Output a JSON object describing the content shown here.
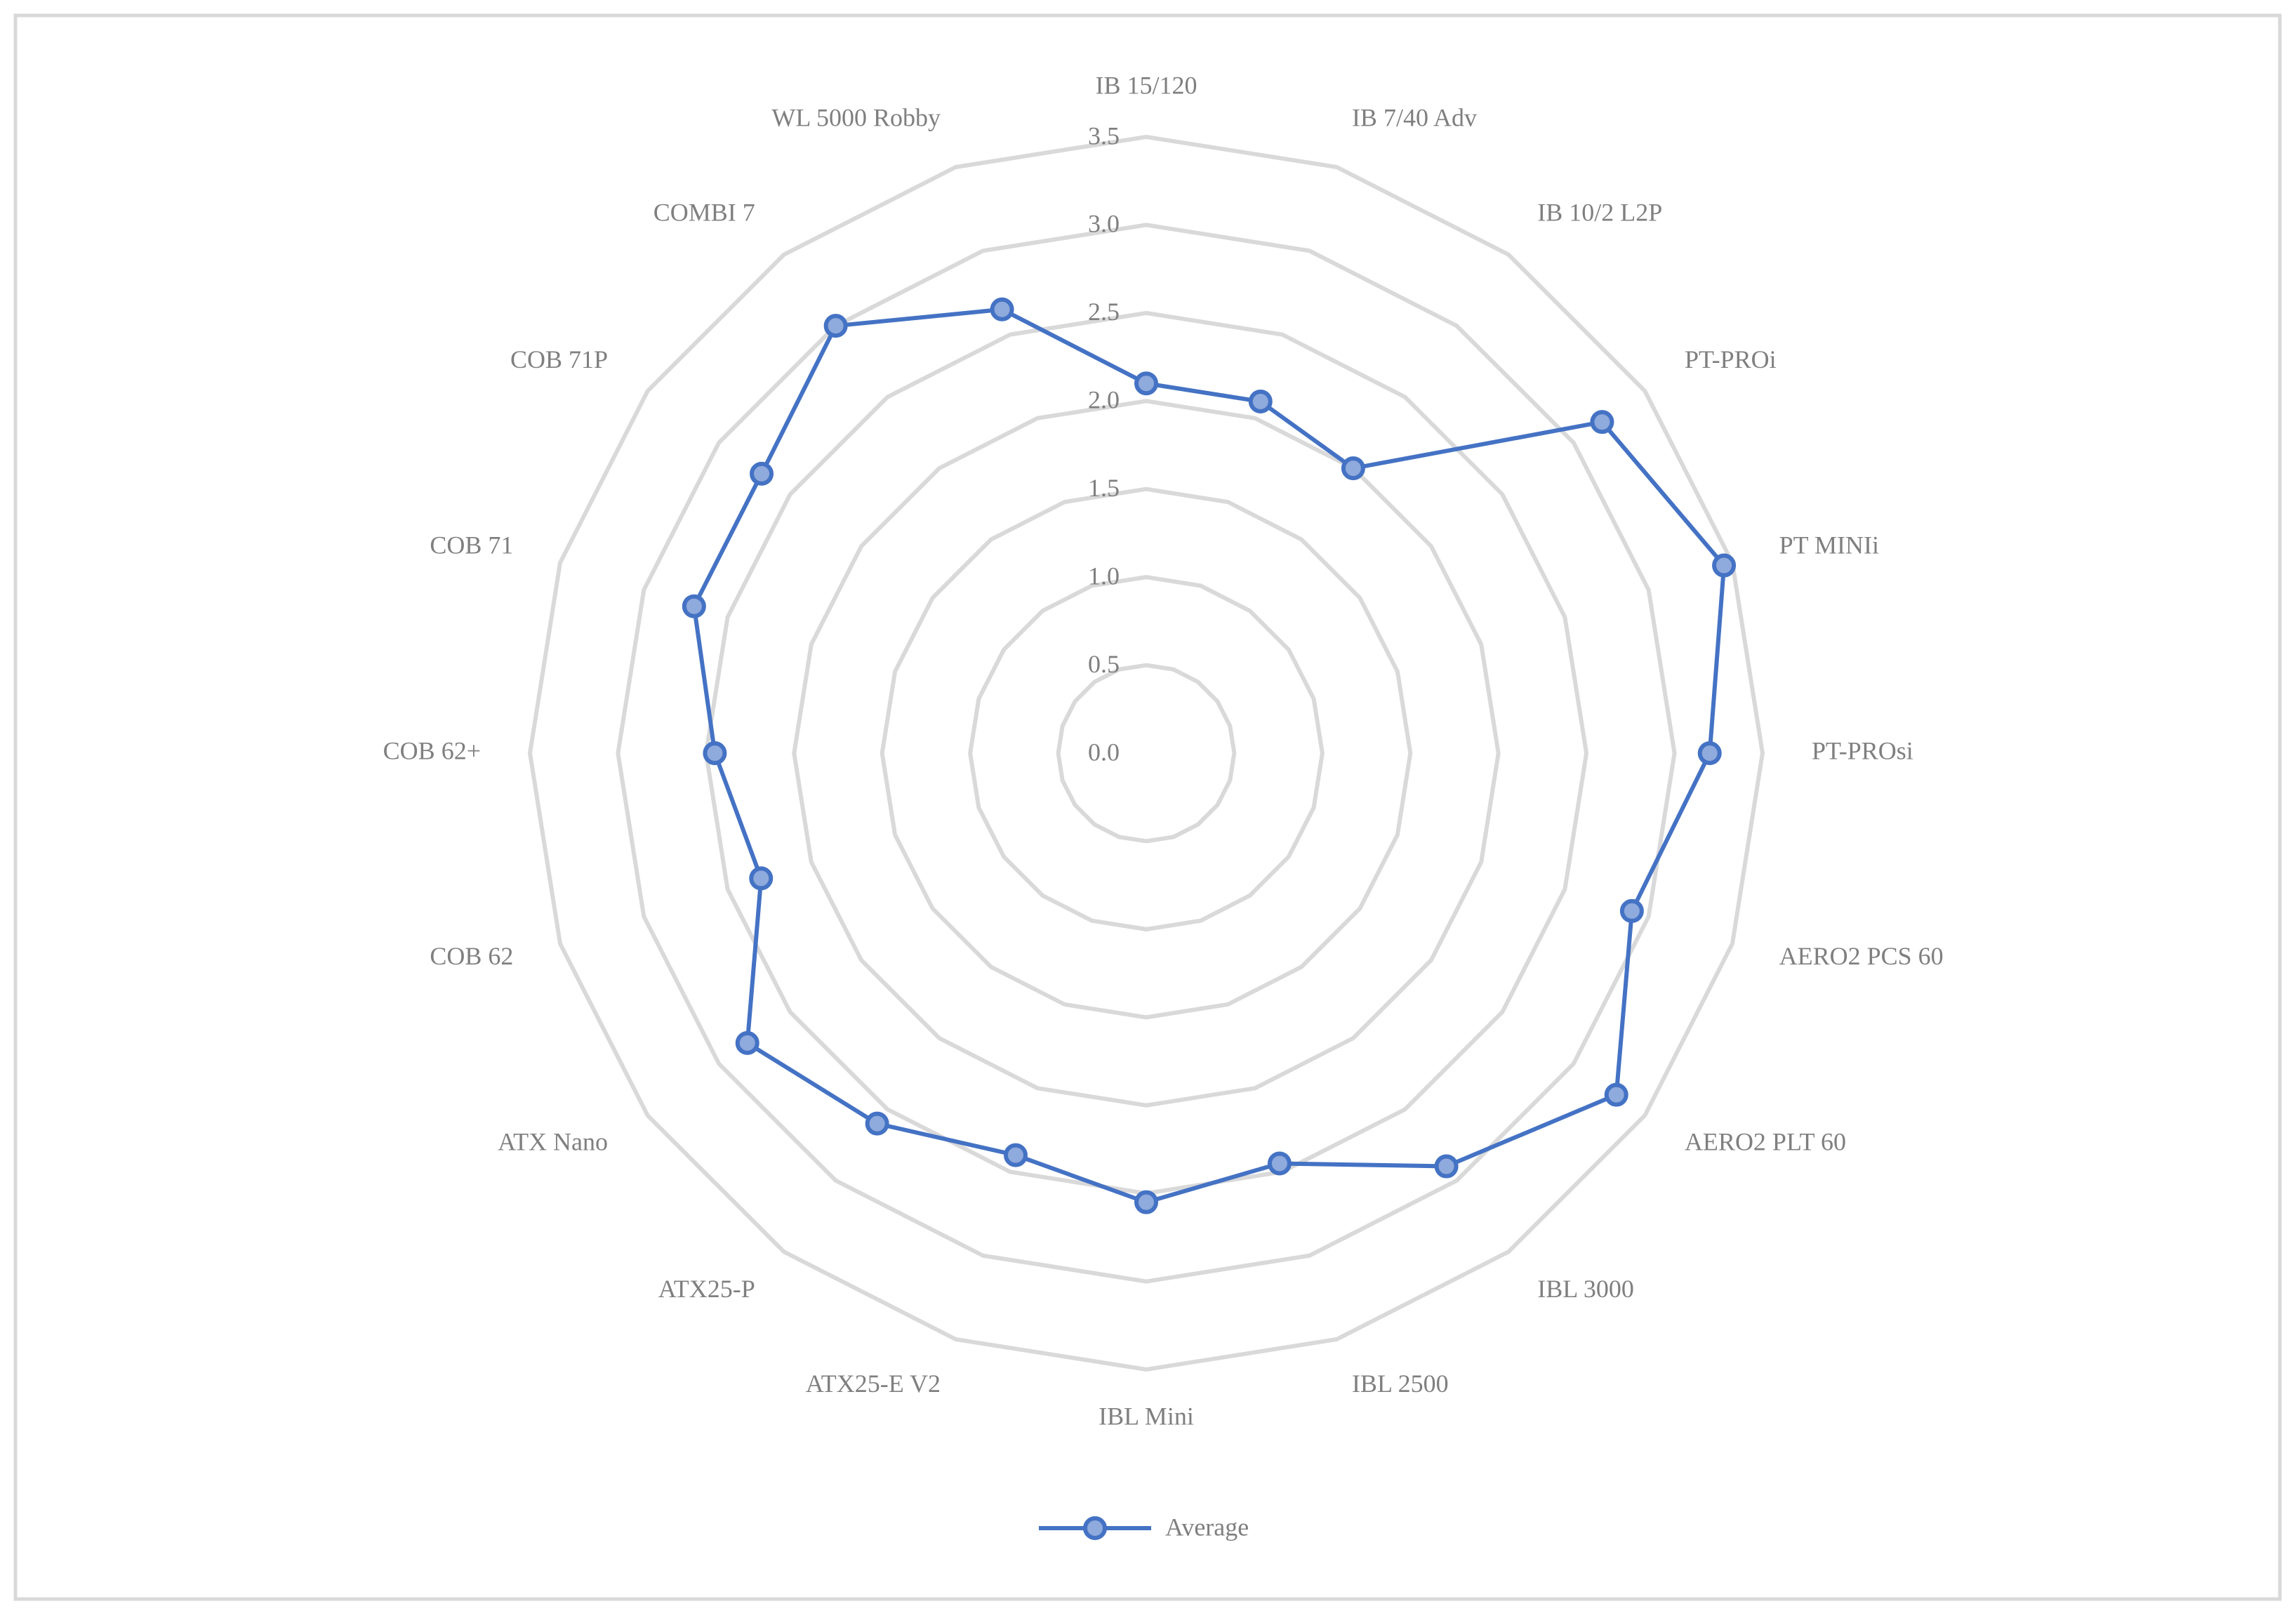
{
  "chart_data": {
    "type": "radar",
    "categories": [
      "IB 15/120",
      "IB 7/40 Adv",
      "IB 10/2 L2P",
      "PT-PROi",
      "PT MINIi",
      "PT-PROsi",
      "AERO2 PCS 60",
      "AERO2 PLT 60",
      "IBL 3000",
      "IBL 2500",
      "IBL Mini",
      "ATX25-E V2",
      "ATX25-P",
      "ATX Nano",
      "COB 62",
      "COB 62+",
      "COB 71",
      "COB 71P",
      "COMBI 7",
      "WL 5000 Robby"
    ],
    "series": [
      {
        "name": "Average",
        "color": "#4472c4",
        "marker_fill": "#8faadc",
        "values": [
          2.1,
          2.1,
          2.0,
          3.2,
          3.45,
          3.2,
          2.9,
          3.3,
          2.9,
          2.45,
          2.55,
          2.4,
          2.6,
          2.8,
          2.3,
          2.45,
          2.7,
          2.7,
          3.0,
          2.65
        ]
      }
    ],
    "ylim": [
      0,
      3.5
    ],
    "yticks": [
      {
        "value": 0,
        "label": "0.0"
      },
      0.5,
      {
        "value": 1,
        "label": "1.0"
      },
      1.5,
      {
        "value": 2,
        "label": "2.0"
      },
      2.5,
      {
        "value": 3,
        "label": "3.0"
      },
      3.5
    ],
    "grid": true,
    "grid_color": "#d9d9d9",
    "legend": "bottom"
  }
}
